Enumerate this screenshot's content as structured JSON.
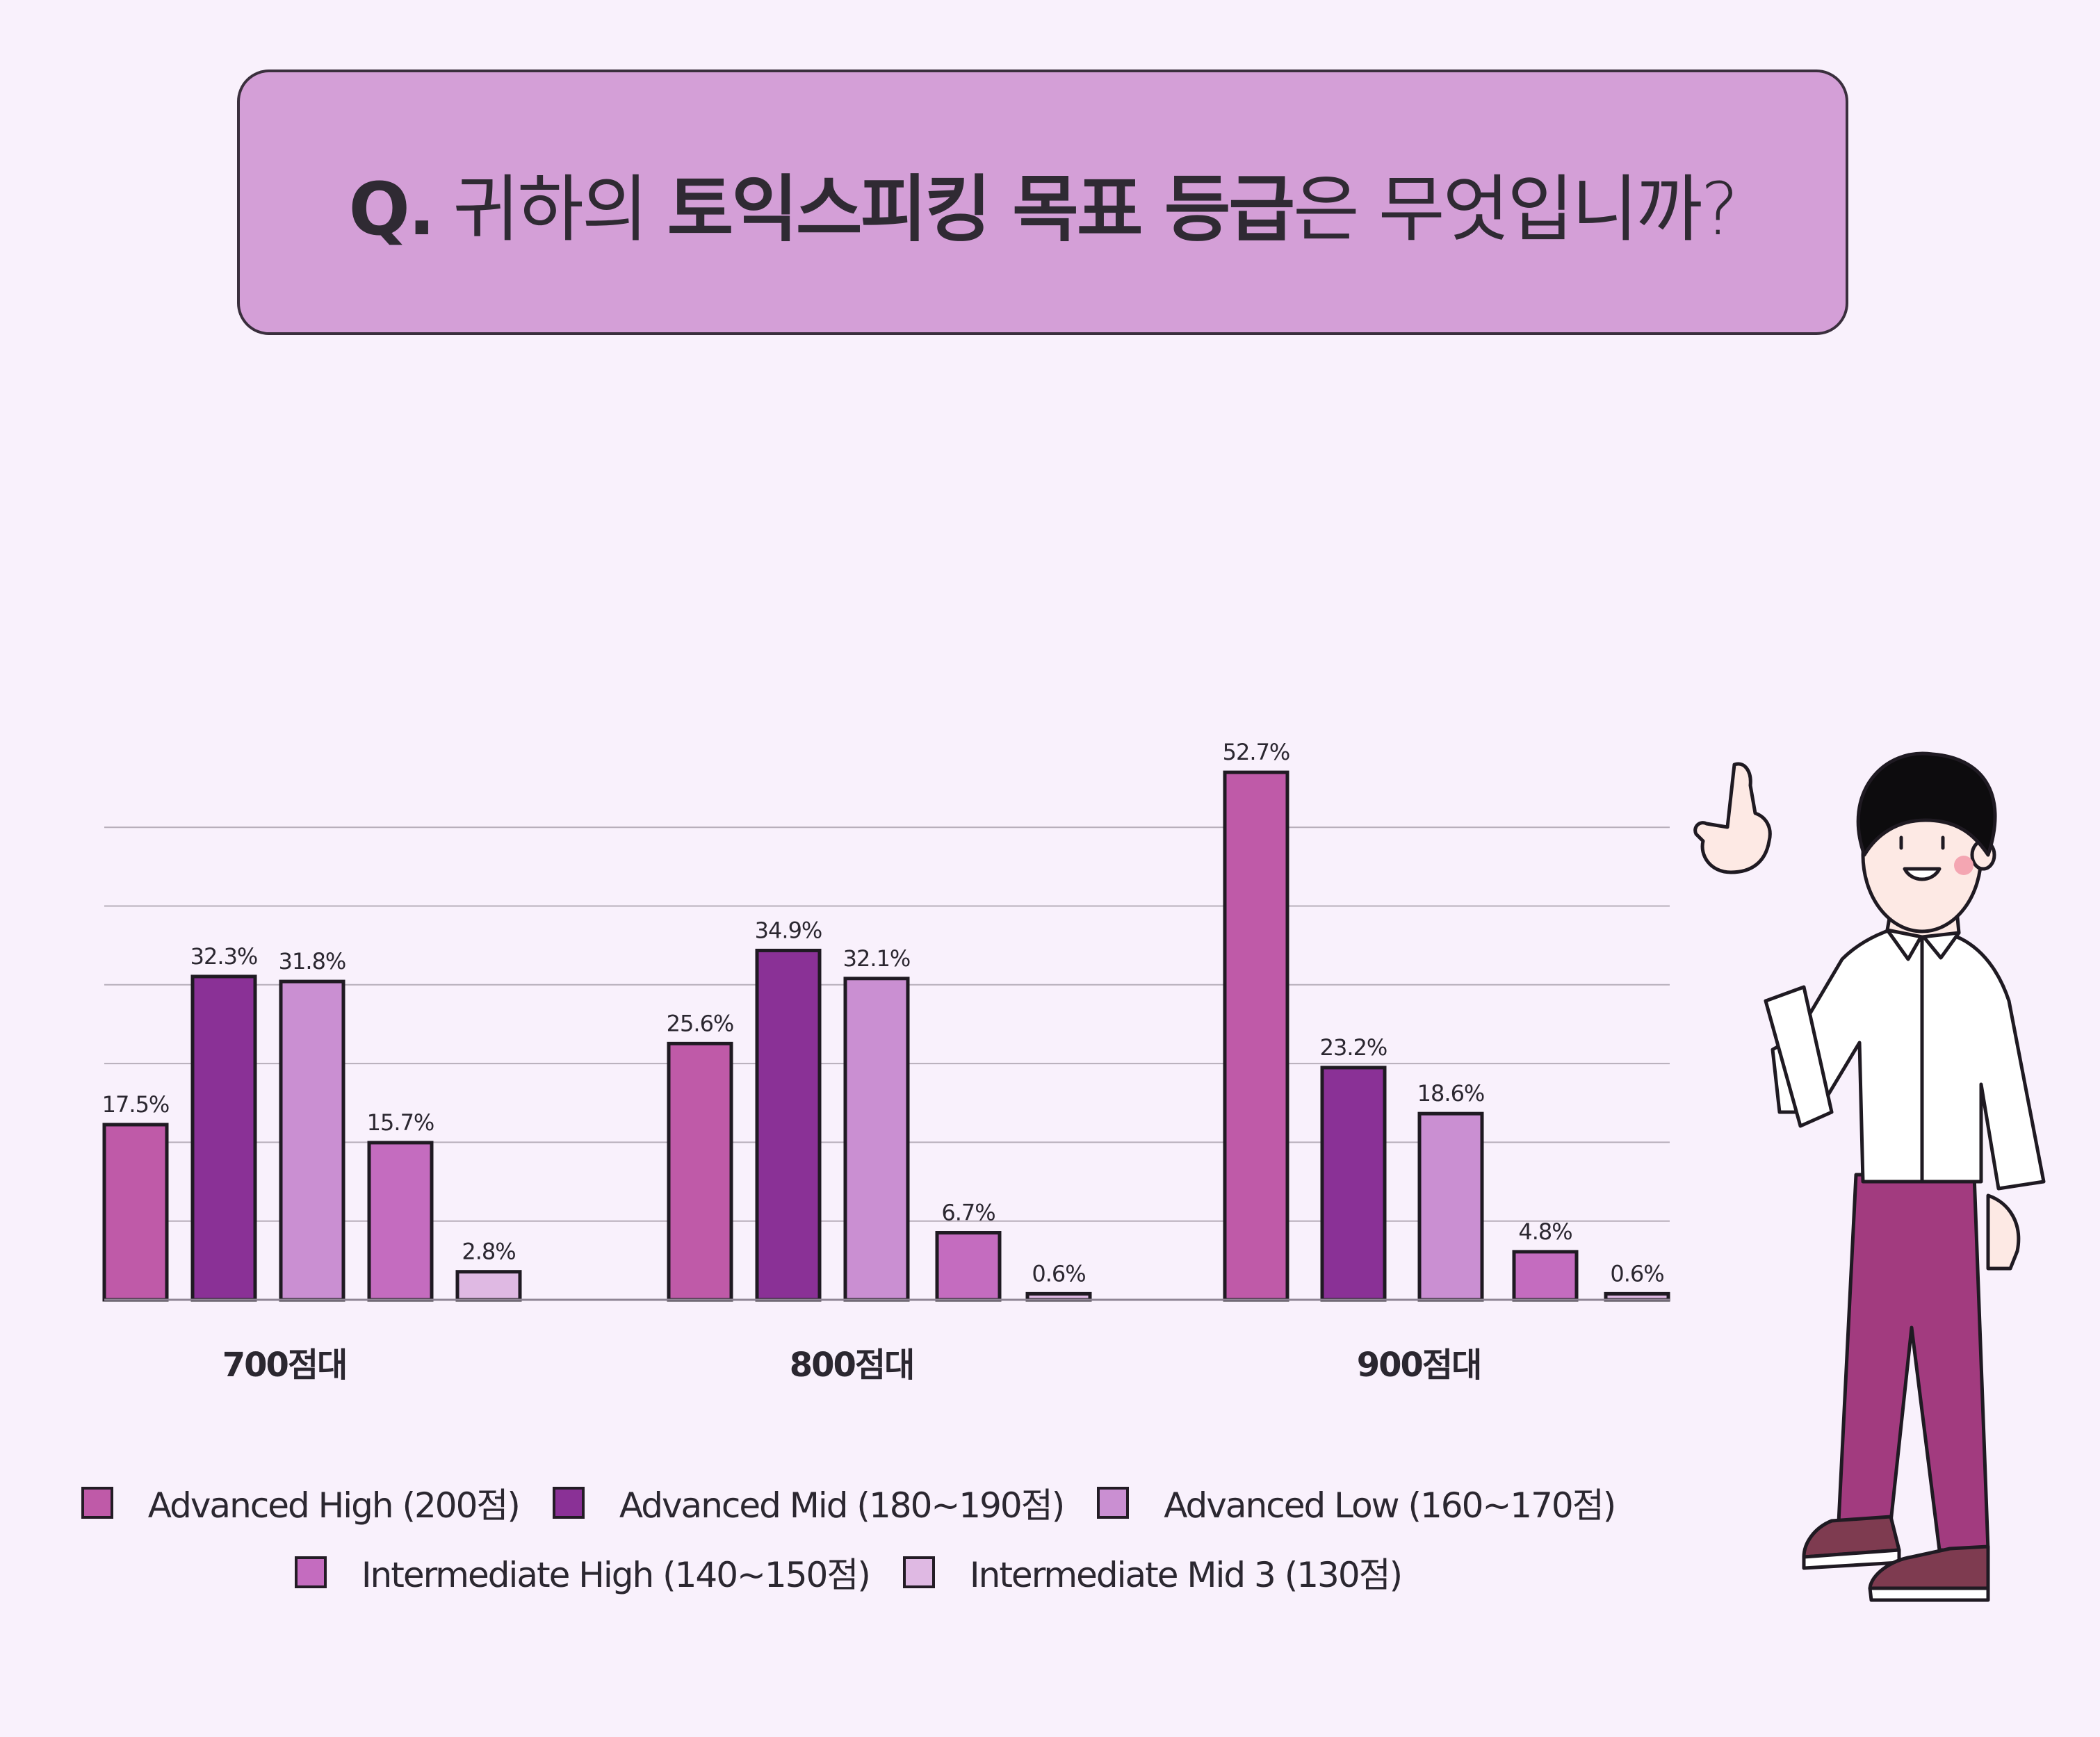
{
  "header": {
    "q": "Q.",
    "part1": "귀하의 ",
    "part2": "토익스피킹 목표 등급",
    "part3": "은 무엇입니까?"
  },
  "chart_data": {
    "type": "bar",
    "title": "Q. 귀하의 토익스피킹 목표 등급은 무엇입니까?",
    "categories": [
      "700점대",
      "800점대",
      "900점대"
    ],
    "series": [
      {
        "name": "Advanced High (200점)",
        "color": "#bf5aa8",
        "values": [
          17.5,
          25.6,
          52.7
        ]
      },
      {
        "name": "Advanced Mid (180~190점)",
        "color": "#8a3196",
        "values": [
          32.3,
          34.9,
          23.2
        ]
      },
      {
        "name": "Advanced Low (160~170점)",
        "color": "#ca8fd2",
        "values": [
          31.8,
          32.1,
          18.6
        ]
      },
      {
        "name": "Intermediate High (140~150점)",
        "color": "#c46cbf",
        "values": [
          15.7,
          6.7,
          4.8
        ]
      },
      {
        "name": "Intermediate Mid 3 (130점)",
        "color": "#dfb9e3",
        "values": [
          2.8,
          0.6,
          0.6
        ]
      }
    ],
    "value_suffix": "%",
    "ylim": [
      0,
      60
    ],
    "grid": true,
    "legend_position": "bottom",
    "xlabel": "",
    "ylabel": ""
  },
  "legend": {
    "row1": [
      {
        "label": "Advanced High (200점)",
        "color": "#bf5aa8"
      },
      {
        "label": "Advanced Mid (180~190점)",
        "color": "#8a3196"
      },
      {
        "label": "Advanced Low (160~170점)",
        "color": "#ca8fd2"
      }
    ],
    "row2": [
      {
        "label": "Intermediate High (140~150점)",
        "color": "#c46cbf"
      },
      {
        "label": "Intermediate Mid 3 (130점)",
        "color": "#dfb9e3"
      }
    ]
  },
  "illustration": {
    "icon": "pointing-man-illustration"
  }
}
